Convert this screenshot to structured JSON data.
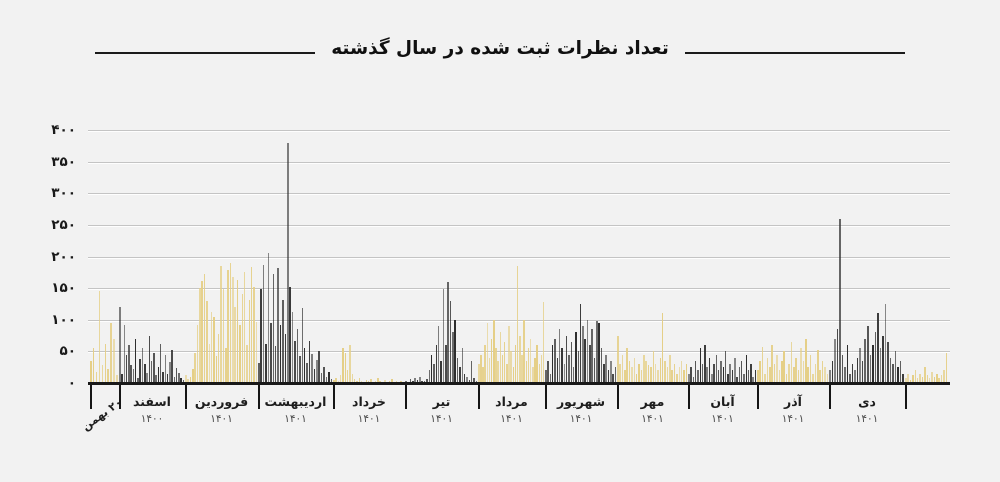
{
  "title": "تعداد نظرات ثبت شده در سال گذشته",
  "colors": {
    "background": "#f2f2f2",
    "yellow_bar": "#e5cf87",
    "dark_bar": "#2e2e2e",
    "gridline": "#c4c4c4",
    "axis": "#191919"
  },
  "y_axis": {
    "tick_labels": [
      "۴۰۰",
      "۳۵۰",
      "۳۰۰",
      "۲۵۰",
      "۲۰۰",
      "۱۵۰",
      "۱۰۰",
      "۵۰",
      "۰"
    ],
    "tick_values": [
      400,
      350,
      300,
      250,
      200,
      150,
      100,
      50,
      0
    ]
  },
  "chart_data": {
    "type": "bar",
    "title": "تعداد نظرات ثبت شده در سال گذشته",
    "granularity": "daily",
    "ylim": [
      0,
      400
    ],
    "grid": true,
    "legend": false,
    "direction": "ltr-time",
    "months": [
      {
        "label": "۲۰ بهمن",
        "year": "",
        "rotated": true,
        "color": "yellow",
        "values": [
          35,
          55,
          18,
          145,
          28,
          62,
          22,
          95,
          70,
          12
        ]
      },
      {
        "label": "اسفند",
        "year": "۱۴۰۰",
        "color": "dark",
        "values": [
          120,
          15,
          92,
          45,
          60,
          28,
          22,
          70,
          8,
          38,
          55,
          30,
          16,
          75,
          35,
          48,
          12,
          26,
          62,
          18,
          45,
          14,
          34,
          52,
          10,
          24,
          16,
          8,
          5
        ]
      },
      {
        "label": "فروردین",
        "year": "۱۴۰۱",
        "color": "yellow",
        "values": [
          12,
          6,
          9,
          22,
          48,
          92,
          150,
          162,
          172,
          130,
          62,
          112,
          105,
          42,
          78,
          185,
          148,
          55,
          178,
          190,
          168,
          120,
          163,
          92,
          140,
          175,
          60,
          132,
          183,
          152,
          96
        ]
      },
      {
        "label": "اردیبهشت",
        "year": "۱۴۰۱",
        "color": "dark",
        "values": [
          32,
          148,
          186,
          62,
          205,
          95,
          172,
          58,
          182,
          92,
          132,
          78,
          380,
          152,
          112,
          66,
          86,
          42,
          118,
          56,
          32,
          66,
          46,
          22,
          36,
          50,
          16,
          26,
          10,
          18,
          6
        ]
      },
      {
        "label": "خرداد",
        "year": "۱۴۰۱",
        "color": "yellow",
        "values": [
          5,
          8,
          3,
          12,
          56,
          48,
          20,
          60,
          15,
          6,
          3,
          8,
          4,
          2,
          5,
          3,
          6,
          2,
          4,
          8,
          3,
          2,
          5,
          2,
          3,
          6,
          2,
          4,
          2,
          3,
          2
        ]
      },
      {
        "label": "تیر",
        "year": "۱۴۰۱",
        "color": "dark",
        "values": [
          4,
          2,
          6,
          3,
          8,
          5,
          10,
          4,
          3,
          6,
          20,
          45,
          30,
          60,
          90,
          35,
          148,
          60,
          160,
          130,
          80,
          100,
          40,
          25,
          55,
          15,
          10,
          5,
          35,
          8,
          4
        ]
      },
      {
        "label": "مرداد",
        "year": "۱۴۰۱",
        "color": "yellow",
        "values": [
          30,
          45,
          25,
          60,
          95,
          40,
          70,
          100,
          55,
          35,
          80,
          45,
          65,
          30,
          90,
          50,
          25,
          60,
          185,
          75,
          45,
          100,
          35,
          55,
          70,
          25,
          40,
          60,
          30,
          45,
          128
        ]
      },
      {
        "label": "شهریور",
        "year": "۱۴۰۱",
        "color": "dark",
        "values": [
          20,
          35,
          15,
          60,
          70,
          40,
          85,
          55,
          30,
          75,
          45,
          65,
          25,
          80,
          50,
          125,
          90,
          70,
          100,
          60,
          85,
          40,
          98,
          95,
          55,
          30,
          45,
          20,
          35,
          15,
          25
        ]
      },
      {
        "label": "مهر",
        "year": "۱۴۰۱",
        "color": "yellow",
        "values": [
          75,
          30,
          45,
          20,
          55,
          35,
          25,
          40,
          15,
          30,
          20,
          45,
          35,
          28,
          25,
          50,
          30,
          20,
          40,
          110,
          35,
          25,
          45,
          20,
          30,
          15,
          25,
          35,
          20,
          30
        ]
      },
      {
        "label": "آبان",
        "year": "۱۴۰۱",
        "color": "dark",
        "values": [
          15,
          25,
          10,
          35,
          20,
          55,
          30,
          60,
          25,
          40,
          15,
          30,
          45,
          20,
          35,
          25,
          50,
          15,
          30,
          20,
          40,
          10,
          25,
          35,
          15,
          45,
          20,
          30,
          10,
          20
        ]
      },
      {
        "label": "آذر",
        "year": "۱۴۰۱",
        "color": "yellow",
        "values": [
          20,
          35,
          57,
          15,
          40,
          25,
          60,
          30,
          45,
          20,
          35,
          50,
          15,
          30,
          65,
          25,
          40,
          20,
          55,
          35,
          70,
          25,
          45,
          15,
          30,
          52,
          20,
          35,
          25,
          15
        ]
      },
      {
        "label": "دی",
        "year": "۱۴۰۱",
        "color": "dark",
        "values": [
          20,
          35,
          70,
          85,
          260,
          45,
          25,
          60,
          15,
          30,
          20,
          40,
          55,
          35,
          70,
          90,
          45,
          60,
          80,
          110,
          55,
          75,
          125,
          65,
          40,
          30,
          50,
          25,
          35,
          15
        ]
      },
      {
        "label": "",
        "year": "",
        "color": "yellow",
        "values": [
          8,
          15,
          5,
          12,
          20,
          8,
          15,
          10,
          25,
          12,
          8,
          18,
          10,
          15,
          8,
          12,
          20,
          48
        ]
      }
    ]
  }
}
